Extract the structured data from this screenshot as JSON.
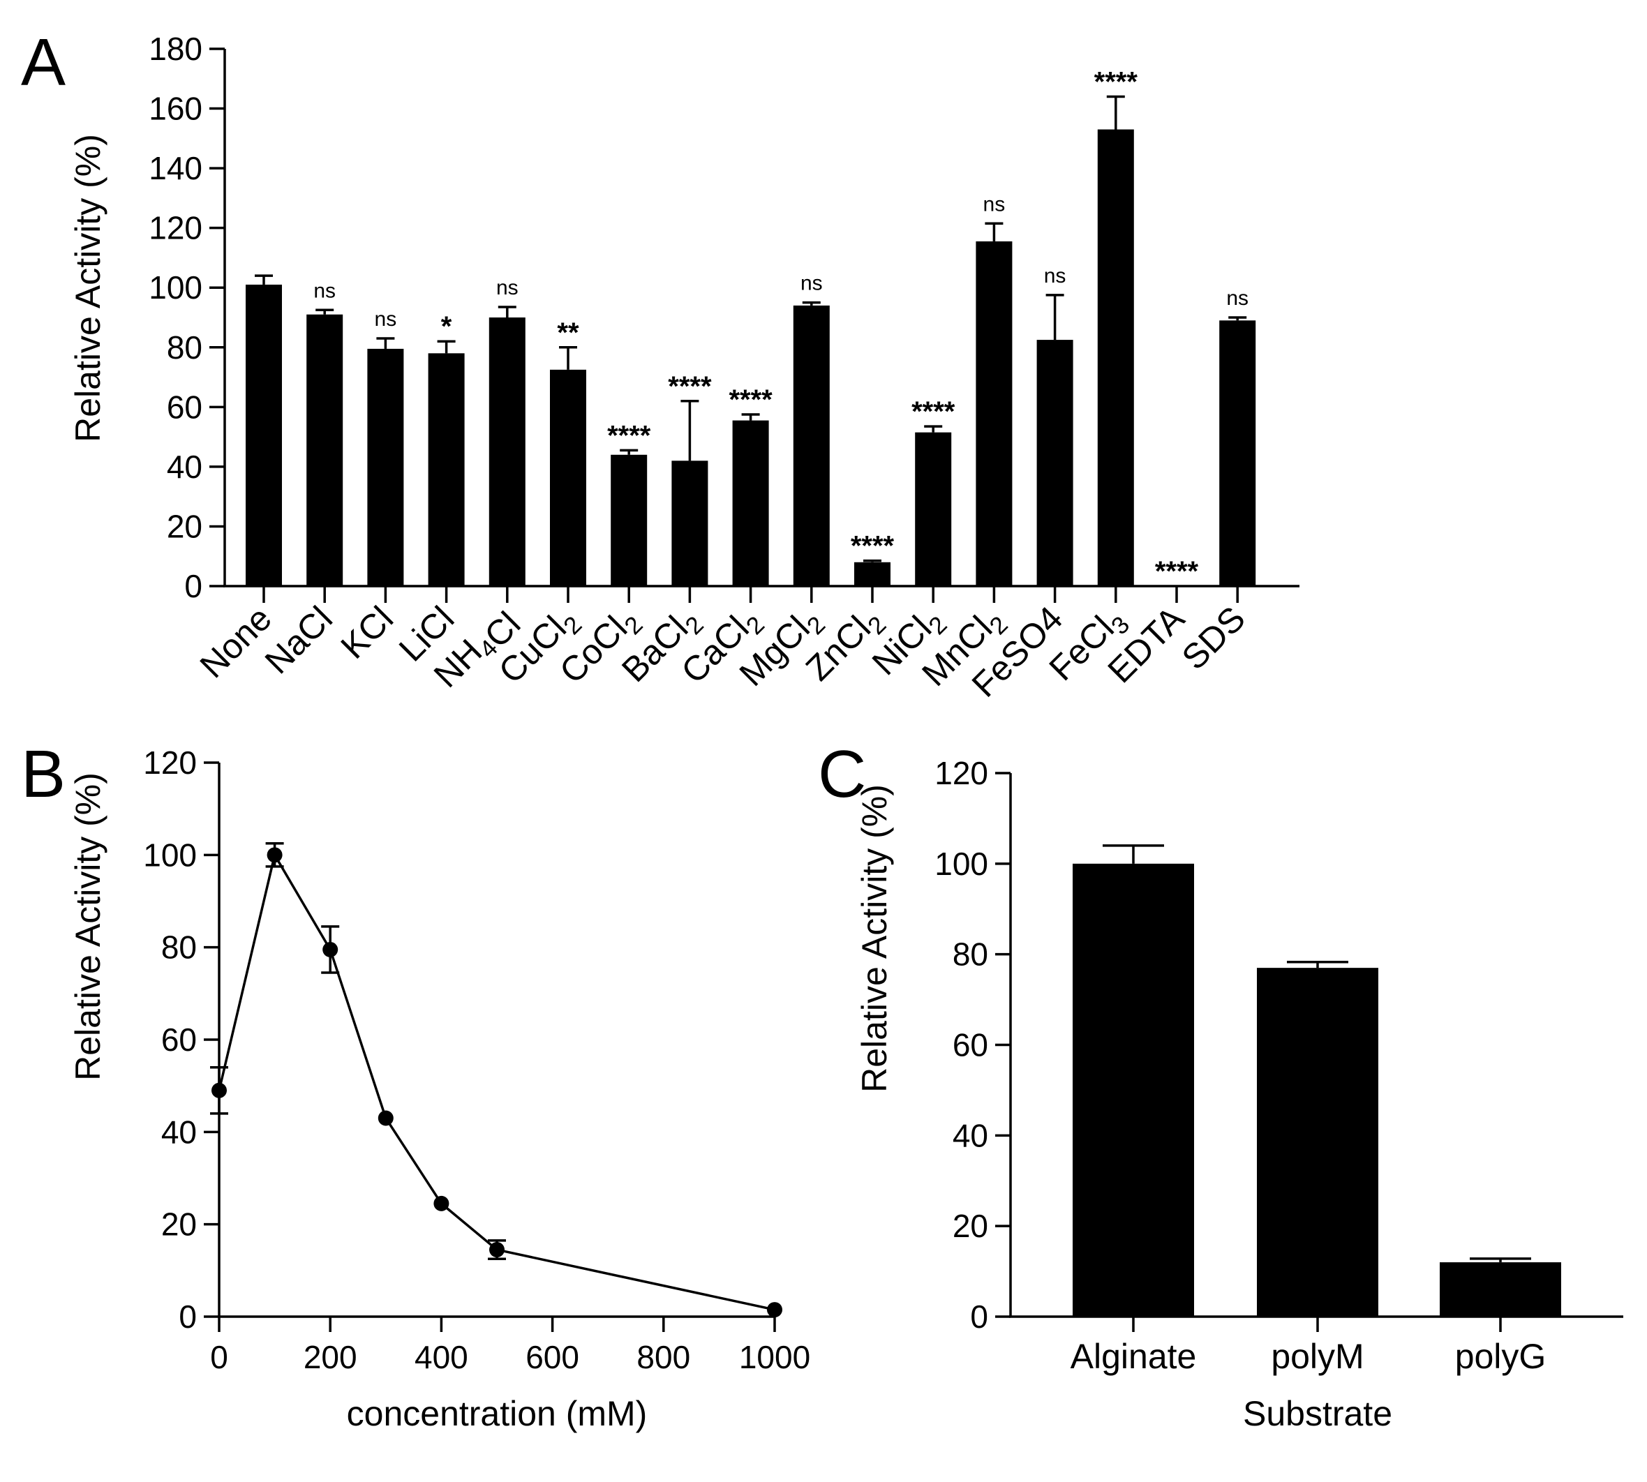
{
  "chart_data": [
    {
      "panel": "A",
      "type": "bar",
      "ylabel": "Relative Activity (%)",
      "xlabel": "",
      "ylim": [
        0,
        180
      ],
      "yticks": [
        0,
        20,
        40,
        60,
        80,
        100,
        120,
        140,
        160,
        180
      ],
      "categories": [
        {
          "label": "None",
          "subs": []
        },
        {
          "label": "NaCl",
          "subs": []
        },
        {
          "label": "KCl",
          "subs": []
        },
        {
          "label": "LiCl",
          "subs": []
        },
        {
          "label": "NH4Cl",
          "subs": [
            [
              2,
              3
            ]
          ]
        },
        {
          "label": "CuCl2",
          "subs": [
            [
              4,
              5
            ]
          ]
        },
        {
          "label": "CoCl2",
          "subs": [
            [
              4,
              5
            ]
          ]
        },
        {
          "label": "BaCl2",
          "subs": [
            [
              4,
              5
            ]
          ]
        },
        {
          "label": "CaCl2",
          "subs": [
            [
              4,
              5
            ]
          ]
        },
        {
          "label": "MgCl2",
          "subs": [
            [
              4,
              5
            ]
          ]
        },
        {
          "label": "ZnCl2",
          "subs": [
            [
              4,
              5
            ]
          ]
        },
        {
          "label": "NiCl2",
          "subs": [
            [
              4,
              5
            ]
          ]
        },
        {
          "label": "MnCl2",
          "subs": [
            [
              4,
              5
            ]
          ]
        },
        {
          "label": "FeSO4",
          "subs": [
            [
              5,
              6
            ]
          ]
        },
        {
          "label": "FeCl3",
          "subs": [
            [
              4,
              5
            ]
          ]
        },
        {
          "label": "EDTA",
          "subs": []
        },
        {
          "label": "SDS",
          "subs": []
        }
      ],
      "values": [
        101,
        91,
        79.5,
        78,
        90,
        72.5,
        44,
        42,
        55.5,
        94,
        8,
        51.5,
        115.5,
        82.5,
        153,
        0,
        89
      ],
      "errors": [
        3,
        1.5,
        3.5,
        4,
        3.5,
        7.5,
        1.5,
        20,
        2,
        1,
        0.5,
        2,
        6,
        15,
        11,
        0,
        1
      ],
      "significance": [
        "",
        "ns",
        "ns",
        "*",
        "ns",
        "**",
        "****",
        "****",
        "****",
        "ns",
        "****",
        "****",
        "ns",
        "ns",
        "****",
        "****",
        "ns"
      ]
    },
    {
      "panel": "B",
      "type": "line",
      "ylabel": "Relative Activity (%)",
      "xlabel": "concentration (mM)",
      "xlim": [
        0,
        1000
      ],
      "ylim": [
        0,
        120
      ],
      "xticks": [
        0,
        200,
        400,
        600,
        800,
        1000
      ],
      "yticks": [
        0,
        20,
        40,
        60,
        80,
        100,
        120
      ],
      "x": [
        0,
        100,
        200,
        300,
        400,
        500,
        1000
      ],
      "y": [
        49,
        100,
        79.5,
        43,
        24.5,
        14.5,
        1.5
      ],
      "errors": [
        5,
        2.5,
        5,
        0.5,
        0.5,
        2,
        0.5
      ]
    },
    {
      "panel": "C",
      "type": "bar",
      "ylabel": "Relative Activity (%)",
      "xlabel": "Substrate",
      "ylim": [
        0,
        120
      ],
      "yticks": [
        0,
        20,
        40,
        60,
        80,
        100,
        120
      ],
      "categories": [
        {
          "label": "Alginate",
          "subs": []
        },
        {
          "label": "polyM",
          "subs": []
        },
        {
          "label": "polyG",
          "subs": []
        }
      ],
      "values": [
        100,
        77,
        12
      ],
      "errors": [
        4,
        1.3,
        0.8
      ]
    }
  ]
}
